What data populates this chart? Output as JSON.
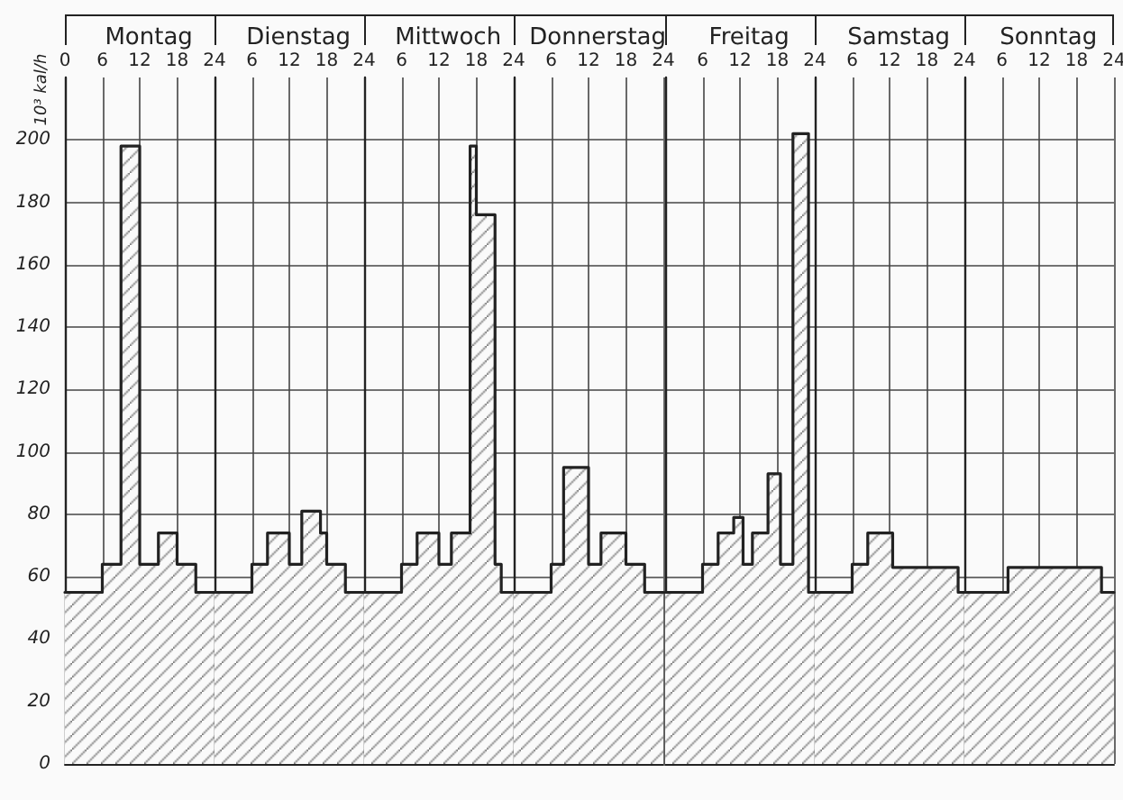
{
  "chart_data": [
    {
      "type": "area",
      "title": "Montag",
      "ylabel": "10³ kal/h",
      "x": [
        0,
        6,
        6,
        9,
        9,
        12,
        12,
        15,
        15,
        18,
        18,
        21,
        21,
        24
      ],
      "values": [
        55,
        55,
        64,
        64,
        198,
        198,
        64,
        64,
        74,
        74,
        64,
        64,
        55,
        55
      ],
      "color": "#222222",
      "xlim": [
        0,
        24
      ],
      "xticks": [
        0,
        6,
        12,
        18,
        24
      ],
      "ylim": [
        0,
        220
      ],
      "yticks": [
        0,
        20,
        40,
        60,
        80,
        100,
        120,
        140,
        160,
        180,
        200
      ],
      "grid": true
    },
    {
      "type": "area",
      "title": "Dienstag",
      "x": [
        0,
        6,
        6,
        8.5,
        8.5,
        12,
        12,
        14,
        14,
        17,
        17,
        18,
        18,
        21,
        21,
        24
      ],
      "values": [
        55,
        55,
        64,
        64,
        74,
        74,
        64,
        64,
        81,
        81,
        74,
        74,
        64,
        64,
        55,
        55
      ],
      "color": "#222222",
      "xlim": [
        0,
        24
      ],
      "xticks": [
        6,
        12,
        18,
        24
      ],
      "ylim": [
        0,
        220
      ],
      "yticks": [
        0,
        20,
        40,
        60,
        80,
        100,
        120,
        140,
        160,
        180,
        200
      ],
      "grid": true,
      "tick_labels": "x"
    },
    {
      "type": "area",
      "title": "Mittwoch",
      "x": [
        0,
        6,
        6,
        8.5,
        8.5,
        12,
        12,
        14,
        14,
        17,
        17,
        18,
        18,
        21,
        21,
        22,
        22,
        24
      ],
      "values": [
        55,
        55,
        64,
        64,
        74,
        74,
        64,
        64,
        74,
        74,
        198,
        198,
        176,
        176,
        64,
        64,
        55,
        55
      ],
      "color": "#222222",
      "xlim": [
        0,
        24
      ],
      "xticks": [
        6,
        12,
        18,
        24
      ],
      "ylim": [
        0,
        220
      ],
      "yticks": [
        0,
        20,
        40,
        60,
        80,
        100,
        120,
        140,
        160,
        180,
        200
      ],
      "grid": true,
      "tick_labels": "x"
    },
    {
      "type": "area",
      "title": "Donnerstag",
      "x": [
        0,
        6,
        6,
        8,
        8,
        12,
        12,
        14,
        14,
        18,
        18,
        21,
        21,
        24
      ],
      "values": [
        55,
        55,
        64,
        64,
        95,
        95,
        64,
        64,
        74,
        74,
        64,
        64,
        55,
        55
      ],
      "color": "#222222",
      "xlim": [
        0,
        24
      ],
      "xticks": [
        6,
        12,
        18,
        24
      ],
      "ylim": [
        0,
        220
      ],
      "yticks": [
        0,
        20,
        40,
        60,
        80,
        100,
        120,
        140,
        160,
        180,
        200
      ],
      "grid": true,
      "tick_labels": "x"
    },
    {
      "type": "area",
      "title": "Freitag",
      "x": [
        0,
        6,
        6,
        8.5,
        8.5,
        11,
        11,
        12.5,
        12.5,
        14,
        14,
        16.5,
        16.5,
        18.5,
        18.5,
        20.5,
        20.5,
        23,
        23,
        24
      ],
      "values": [
        55,
        55,
        64,
        64,
        74,
        74,
        79,
        79,
        64,
        64,
        74,
        74,
        93,
        93,
        64,
        64,
        202,
        202,
        55,
        55
      ],
      "color": "#222222",
      "xlim": [
        0,
        24
      ],
      "xticks": [
        6,
        12,
        18,
        24
      ],
      "ylim": [
        0,
        220
      ],
      "yticks": [
        0,
        20,
        40,
        60,
        80,
        100,
        120,
        140,
        160,
        180,
        200
      ],
      "grid": true,
      "tick_labels": "x"
    },
    {
      "type": "area",
      "title": "Samstag",
      "x": [
        0,
        6,
        6,
        8.5,
        8.5,
        12.5,
        12.5,
        23,
        23,
        24
      ],
      "values": [
        55,
        55,
        64,
        64,
        74,
        74,
        63,
        63,
        55,
        55
      ],
      "color": "#222222",
      "xlim": [
        0,
        24
      ],
      "xticks": [
        6,
        12,
        18,
        24
      ],
      "ylim": [
        0,
        220
      ],
      "yticks": [
        0,
        20,
        40,
        60,
        80,
        100,
        120,
        140,
        160,
        180,
        200
      ],
      "grid": true,
      "tick_labels": "x"
    },
    {
      "type": "area",
      "title": "Sonntag",
      "x": [
        0,
        7,
        7,
        22,
        22,
        24
      ],
      "values": [
        55,
        55,
        63,
        63,
        55,
        55
      ],
      "color": "#222222",
      "xlim": [
        0,
        24
      ],
      "xticks": [
        6,
        12,
        18,
        24
      ],
      "ylim": [
        0,
        220
      ],
      "yticks": [
        0,
        20,
        40,
        60,
        80,
        100,
        120,
        140,
        160,
        180,
        200
      ],
      "grid": true,
      "tick_labels": "x"
    }
  ]
}
